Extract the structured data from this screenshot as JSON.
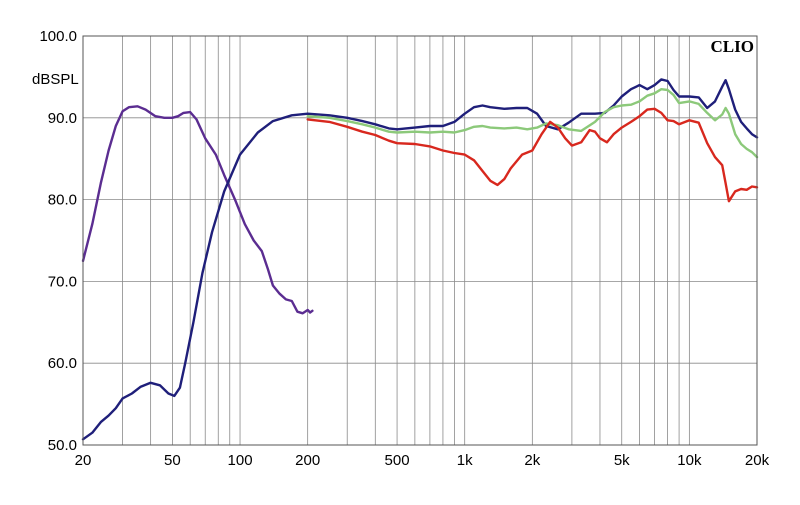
{
  "chart_data": {
    "type": "line",
    "brand": "CLIO",
    "ylabel": "dBSPL",
    "x_scale": "log",
    "xlim": [
      20,
      20000
    ],
    "ylim": [
      50,
      100
    ],
    "x_ticks": [
      {
        "value": 20,
        "label": "20"
      },
      {
        "value": 50,
        "label": "50"
      },
      {
        "value": 100,
        "label": "100"
      },
      {
        "value": 200,
        "label": "200"
      },
      {
        "value": 500,
        "label": "500"
      },
      {
        "value": 1000,
        "label": "1k"
      },
      {
        "value": 2000,
        "label": "2k"
      },
      {
        "value": 5000,
        "label": "5k"
      },
      {
        "value": 10000,
        "label": "10k"
      },
      {
        "value": 20000,
        "label": "20k"
      }
    ],
    "y_ticks": [
      {
        "value": 50,
        "label": "50.0"
      },
      {
        "value": 60,
        "label": "60.0"
      },
      {
        "value": 70,
        "label": "70.0"
      },
      {
        "value": 80,
        "label": "80.0"
      },
      {
        "value": 90,
        "label": "90.0"
      },
      {
        "value": 100,
        "label": "100.0"
      }
    ],
    "grid": true,
    "colors": {
      "purple": "#5b2d91",
      "navy": "#1f1f7a",
      "green": "#8cc97a",
      "red": "#d8281e"
    },
    "series": [
      {
        "color": "purple",
        "points": [
          [
            20,
            72.5
          ],
          [
            22,
            77
          ],
          [
            24,
            82
          ],
          [
            26,
            86
          ],
          [
            28,
            89
          ],
          [
            30,
            90.8
          ],
          [
            32,
            91.3
          ],
          [
            35,
            91.4
          ],
          [
            38,
            91
          ],
          [
            42,
            90.2
          ],
          [
            46,
            90
          ],
          [
            50,
            90
          ],
          [
            53,
            90.2
          ],
          [
            56,
            90.6
          ],
          [
            60,
            90.7
          ],
          [
            64,
            89.8
          ],
          [
            70,
            87.5
          ],
          [
            78,
            85.5
          ],
          [
            85,
            83
          ],
          [
            95,
            80
          ],
          [
            105,
            77
          ],
          [
            115,
            75
          ],
          [
            125,
            73.7
          ],
          [
            133,
            71.5
          ],
          [
            140,
            69.5
          ],
          [
            150,
            68.5
          ],
          [
            160,
            67.8
          ],
          [
            170,
            67.6
          ],
          [
            180,
            66.3
          ],
          [
            190,
            66.1
          ],
          [
            200,
            66.5
          ],
          [
            205,
            66.2
          ],
          [
            210,
            66.4
          ]
        ]
      },
      {
        "color": "navy",
        "points": [
          [
            20,
            50.7
          ],
          [
            22,
            51.5
          ],
          [
            24,
            52.8
          ],
          [
            26,
            53.6
          ],
          [
            28,
            54.5
          ],
          [
            30,
            55.7
          ],
          [
            33,
            56.3
          ],
          [
            36,
            57.1
          ],
          [
            40,
            57.6
          ],
          [
            44,
            57.3
          ],
          [
            48,
            56.3
          ],
          [
            51,
            56
          ],
          [
            54,
            57
          ],
          [
            57,
            60
          ],
          [
            62,
            65
          ],
          [
            68,
            71
          ],
          [
            75,
            76
          ],
          [
            85,
            81
          ],
          [
            100,
            85.5
          ],
          [
            120,
            88.2
          ],
          [
            140,
            89.6
          ],
          [
            170,
            90.3
          ],
          [
            200,
            90.5
          ],
          [
            250,
            90.3
          ],
          [
            300,
            90
          ],
          [
            350,
            89.6
          ],
          [
            400,
            89.2
          ],
          [
            460,
            88.7
          ],
          [
            500,
            88.6
          ],
          [
            600,
            88.8
          ],
          [
            700,
            89
          ],
          [
            800,
            89
          ],
          [
            900,
            89.5
          ],
          [
            1000,
            90.5
          ],
          [
            1100,
            91.3
          ],
          [
            1200,
            91.5
          ],
          [
            1300,
            91.3
          ],
          [
            1500,
            91.1
          ],
          [
            1700,
            91.2
          ],
          [
            1900,
            91.2
          ],
          [
            2100,
            90.5
          ],
          [
            2300,
            89
          ],
          [
            2600,
            88.6
          ],
          [
            2900,
            89.4
          ],
          [
            3300,
            90.5
          ],
          [
            3800,
            90.5
          ],
          [
            4200,
            90.6
          ],
          [
            4600,
            91.5
          ],
          [
            5000,
            92.6
          ],
          [
            5500,
            93.5
          ],
          [
            6000,
            94
          ],
          [
            6500,
            93.5
          ],
          [
            7000,
            94
          ],
          [
            7500,
            94.7
          ],
          [
            8000,
            94.5
          ],
          [
            8500,
            93.4
          ],
          [
            9000,
            92.6
          ],
          [
            10000,
            92.6
          ],
          [
            11000,
            92.5
          ],
          [
            12000,
            91.2
          ],
          [
            13000,
            92
          ],
          [
            14000,
            93.8
          ],
          [
            14500,
            94.6
          ],
          [
            15000,
            93.5
          ],
          [
            16000,
            91
          ],
          [
            17000,
            89.5
          ],
          [
            18000,
            88.7
          ],
          [
            19000,
            88
          ],
          [
            20000,
            87.6
          ]
        ]
      },
      {
        "color": "green",
        "points": [
          [
            200,
            90.2
          ],
          [
            250,
            90
          ],
          [
            300,
            89.6
          ],
          [
            350,
            89.2
          ],
          [
            400,
            88.8
          ],
          [
            460,
            88.3
          ],
          [
            500,
            88.2
          ],
          [
            600,
            88.3
          ],
          [
            700,
            88.2
          ],
          [
            800,
            88.3
          ],
          [
            900,
            88.2
          ],
          [
            1000,
            88.5
          ],
          [
            1100,
            88.9
          ],
          [
            1200,
            89
          ],
          [
            1300,
            88.8
          ],
          [
            1500,
            88.7
          ],
          [
            1700,
            88.8
          ],
          [
            1900,
            88.6
          ],
          [
            2100,
            88.8
          ],
          [
            2300,
            89.3
          ],
          [
            2600,
            89.1
          ],
          [
            2900,
            88.6
          ],
          [
            3300,
            88.4
          ],
          [
            3800,
            89.5
          ],
          [
            4200,
            90.7
          ],
          [
            4600,
            91.3
          ],
          [
            5000,
            91.5
          ],
          [
            5500,
            91.6
          ],
          [
            6000,
            92
          ],
          [
            6500,
            92.7
          ],
          [
            7000,
            93
          ],
          [
            7500,
            93.5
          ],
          [
            8000,
            93.4
          ],
          [
            8500,
            92.8
          ],
          [
            9000,
            91.8
          ],
          [
            10000,
            92
          ],
          [
            11000,
            91.7
          ],
          [
            12000,
            90.6
          ],
          [
            13000,
            89.7
          ],
          [
            14000,
            90.4
          ],
          [
            14500,
            91.2
          ],
          [
            15000,
            90.5
          ],
          [
            16000,
            88
          ],
          [
            17000,
            86.8
          ],
          [
            18000,
            86.2
          ],
          [
            19000,
            85.8
          ],
          [
            20000,
            85.2
          ]
        ]
      },
      {
        "color": "red",
        "points": [
          [
            200,
            89.8
          ],
          [
            250,
            89.5
          ],
          [
            300,
            88.9
          ],
          [
            350,
            88.3
          ],
          [
            400,
            87.9
          ],
          [
            460,
            87.2
          ],
          [
            500,
            86.9
          ],
          [
            600,
            86.8
          ],
          [
            700,
            86.5
          ],
          [
            800,
            86
          ],
          [
            900,
            85.7
          ],
          [
            1000,
            85.5
          ],
          [
            1100,
            84.8
          ],
          [
            1200,
            83.5
          ],
          [
            1300,
            82.3
          ],
          [
            1400,
            81.8
          ],
          [
            1500,
            82.5
          ],
          [
            1600,
            83.8
          ],
          [
            1800,
            85.5
          ],
          [
            2000,
            86
          ],
          [
            2200,
            88
          ],
          [
            2400,
            89.5
          ],
          [
            2600,
            88.8
          ],
          [
            2800,
            87.5
          ],
          [
            3000,
            86.6
          ],
          [
            3300,
            87
          ],
          [
            3600,
            88.5
          ],
          [
            3800,
            88.3
          ],
          [
            4000,
            87.5
          ],
          [
            4300,
            87
          ],
          [
            4600,
            88
          ],
          [
            5000,
            88.8
          ],
          [
            5500,
            89.5
          ],
          [
            6000,
            90.2
          ],
          [
            6500,
            91
          ],
          [
            7000,
            91.1
          ],
          [
            7500,
            90.6
          ],
          [
            8000,
            89.7
          ],
          [
            8500,
            89.6
          ],
          [
            9000,
            89.2
          ],
          [
            10000,
            89.7
          ],
          [
            11000,
            89.4
          ],
          [
            12000,
            86.9
          ],
          [
            13000,
            85.2
          ],
          [
            14000,
            84.2
          ],
          [
            14500,
            82
          ],
          [
            15000,
            79.8
          ],
          [
            16000,
            81
          ],
          [
            17000,
            81.3
          ],
          [
            18000,
            81.2
          ],
          [
            19000,
            81.6
          ],
          [
            20000,
            81.5
          ]
        ]
      }
    ]
  }
}
